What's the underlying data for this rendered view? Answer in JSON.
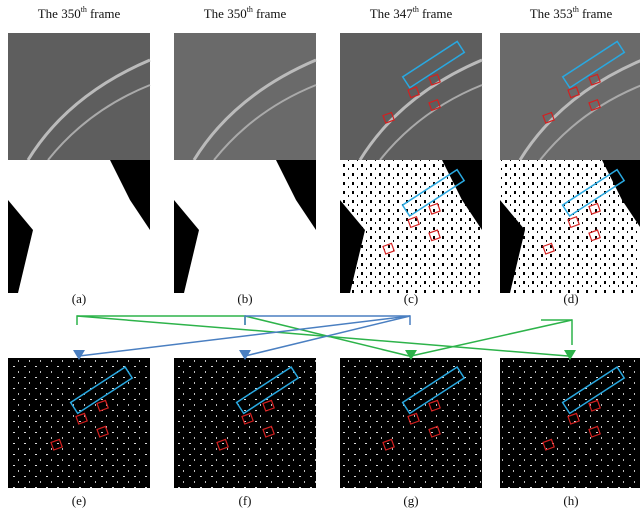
{
  "columns": [
    {
      "title": {
        "number": "The 350",
        "suffix": "th",
        "rest": "frame"
      }
    },
    {
      "title": {
        "number": "The 350",
        "suffix": "th",
        "rest": "frame"
      }
    },
    {
      "title": {
        "number": "The 347",
        "suffix": "th",
        "rest": "frame"
      }
    },
    {
      "title": {
        "number": "The 353",
        "suffix": "th",
        "rest": "frame"
      }
    }
  ],
  "labels": [
    "(a)",
    "(b)",
    "(c)",
    "(d)",
    "(e)",
    "(f)",
    "(g)",
    "(h)"
  ]
}
